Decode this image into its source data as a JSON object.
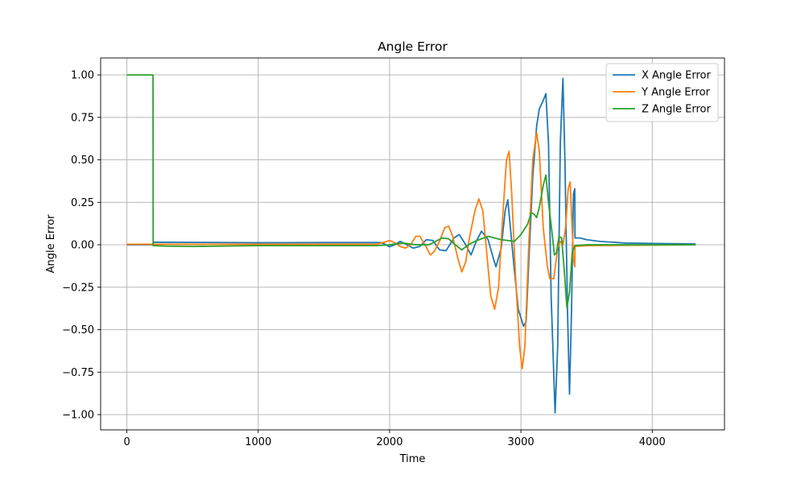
{
  "chart_data": {
    "type": "line",
    "title": "Angle Error",
    "xlabel": "Time",
    "ylabel": "Angle Error",
    "xlim": [
      -200,
      4550
    ],
    "ylim": [
      -1.09,
      1.1
    ],
    "xticks": [
      0,
      1000,
      2000,
      3000,
      4000
    ],
    "xtick_labels": [
      "0",
      "1000",
      "2000",
      "3000",
      "4000"
    ],
    "yticks": [
      -1.0,
      -0.75,
      -0.5,
      -0.25,
      0.0,
      0.25,
      0.5,
      0.75,
      1.0
    ],
    "ytick_labels": [
      "−1.00",
      "−0.75",
      "−0.50",
      "−0.25",
      "0.00",
      "0.25",
      "0.50",
      "0.75",
      "1.00"
    ],
    "grid": true,
    "legend_position": "top-right",
    "series": [
      {
        "name": "X Angle Error",
        "color": "#1f77b4",
        "points": [
          [
            0,
            0
          ],
          [
            199,
            0
          ],
          [
            200,
            0.015
          ],
          [
            600,
            0.014
          ],
          [
            1000,
            0.012
          ],
          [
            1500,
            0.013
          ],
          [
            1930,
            0.013
          ],
          [
            1960,
            0.005
          ],
          [
            2000,
            -0.012
          ],
          [
            2040,
            0.0
          ],
          [
            2080,
            0.02
          ],
          [
            2120,
            0.005
          ],
          [
            2180,
            -0.02
          ],
          [
            2230,
            -0.01
          ],
          [
            2280,
            0.03
          ],
          [
            2330,
            0.025
          ],
          [
            2380,
            -0.03
          ],
          [
            2430,
            -0.035
          ],
          [
            2490,
            0.04
          ],
          [
            2530,
            0.06
          ],
          [
            2580,
            0.0
          ],
          [
            2620,
            -0.06
          ],
          [
            2660,
            0.02
          ],
          [
            2700,
            0.08
          ],
          [
            2750,
            0.03
          ],
          [
            2790,
            -0.08
          ],
          [
            2810,
            -0.13
          ],
          [
            2850,
            -0.02
          ],
          [
            2880,
            0.2
          ],
          [
            2900,
            0.265
          ],
          [
            2920,
            0.1
          ],
          [
            2950,
            -0.15
          ],
          [
            2980,
            -0.38
          ],
          [
            3020,
            -0.48
          ],
          [
            3040,
            -0.45
          ],
          [
            3060,
            -0.1
          ],
          [
            3090,
            0.4
          ],
          [
            3120,
            0.7
          ],
          [
            3140,
            0.8
          ],
          [
            3170,
            0.85
          ],
          [
            3190,
            0.89
          ],
          [
            3210,
            0.6
          ],
          [
            3230,
            -0.3
          ],
          [
            3260,
            -0.99
          ],
          [
            3280,
            -0.6
          ],
          [
            3300,
            0.6
          ],
          [
            3320,
            0.98
          ],
          [
            3335,
            0.5
          ],
          [
            3355,
            -0.4
          ],
          [
            3370,
            -0.88
          ],
          [
            3385,
            -0.4
          ],
          [
            3400,
            0.3
          ],
          [
            3410,
            0.33
          ],
          [
            3412,
            0.04
          ],
          [
            3450,
            0.04
          ],
          [
            3500,
            0.03
          ],
          [
            3600,
            0.02
          ],
          [
            3800,
            0.01
          ],
          [
            4000,
            0.008
          ],
          [
            4330,
            0.005
          ]
        ]
      },
      {
        "name": "Y Angle Error",
        "color": "#ff7f0e",
        "points": [
          [
            0,
            0.003
          ],
          [
            1900,
            0.003
          ],
          [
            1960,
            0.015
          ],
          [
            2000,
            0.025
          ],
          [
            2040,
            0.012
          ],
          [
            2080,
            -0.01
          ],
          [
            2120,
            -0.02
          ],
          [
            2160,
            0.0
          ],
          [
            2200,
            0.05
          ],
          [
            2230,
            0.05
          ],
          [
            2270,
            0.0
          ],
          [
            2310,
            -0.06
          ],
          [
            2340,
            -0.04
          ],
          [
            2380,
            0.02
          ],
          [
            2420,
            0.1
          ],
          [
            2450,
            0.11
          ],
          [
            2480,
            0.05
          ],
          [
            2520,
            -0.08
          ],
          [
            2550,
            -0.16
          ],
          [
            2580,
            -0.1
          ],
          [
            2610,
            0.05
          ],
          [
            2650,
            0.2
          ],
          [
            2680,
            0.27
          ],
          [
            2710,
            0.2
          ],
          [
            2740,
            -0.05
          ],
          [
            2770,
            -0.3
          ],
          [
            2800,
            -0.38
          ],
          [
            2830,
            -0.25
          ],
          [
            2860,
            0.15
          ],
          [
            2890,
            0.5
          ],
          [
            2910,
            0.55
          ],
          [
            2930,
            0.3
          ],
          [
            2960,
            -0.2
          ],
          [
            2990,
            -0.6
          ],
          [
            3010,
            -0.73
          ],
          [
            3030,
            -0.6
          ],
          [
            3060,
            0.0
          ],
          [
            3090,
            0.5
          ],
          [
            3120,
            0.66
          ],
          [
            3140,
            0.55
          ],
          [
            3170,
            0.1
          ],
          [
            3200,
            -0.12
          ],
          [
            3220,
            -0.2
          ],
          [
            3250,
            -0.2
          ],
          [
            3280,
            -0.02
          ],
          [
            3300,
            0.02
          ],
          [
            3320,
            0.0
          ],
          [
            3340,
            0.1
          ],
          [
            3360,
            0.33
          ],
          [
            3375,
            0.37
          ],
          [
            3390,
            0.1
          ],
          [
            3400,
            -0.08
          ],
          [
            3410,
            -0.13
          ],
          [
            3412,
            -0.01
          ],
          [
            3500,
            -0.005
          ],
          [
            4330,
            0.0
          ]
        ]
      },
      {
        "name": "Z Angle Error",
        "color": "#2ca02c",
        "points": [
          [
            0,
            1.0
          ],
          [
            199,
            1.0
          ],
          [
            200,
            -0.005
          ],
          [
            300,
            -0.008
          ],
          [
            500,
            -0.01
          ],
          [
            1000,
            -0.005
          ],
          [
            1900,
            -0.005
          ],
          [
            2000,
            0.0
          ],
          [
            2100,
            0.01
          ],
          [
            2200,
            0.0
          ],
          [
            2300,
            0.0
          ],
          [
            2400,
            0.04
          ],
          [
            2450,
            0.035
          ],
          [
            2500,
            0.0
          ],
          [
            2550,
            -0.03
          ],
          [
            2600,
            0.0
          ],
          [
            2650,
            0.02
          ],
          [
            2750,
            0.05
          ],
          [
            2850,
            0.03
          ],
          [
            2950,
            0.02
          ],
          [
            3000,
            0.06
          ],
          [
            3050,
            0.12
          ],
          [
            3080,
            0.19
          ],
          [
            3100,
            0.18
          ],
          [
            3120,
            0.16
          ],
          [
            3140,
            0.22
          ],
          [
            3170,
            0.35
          ],
          [
            3190,
            0.41
          ],
          [
            3210,
            0.25
          ],
          [
            3240,
            0.05
          ],
          [
            3255,
            -0.06
          ],
          [
            3270,
            -0.05
          ],
          [
            3290,
            0.05
          ],
          [
            3310,
            0.04
          ],
          [
            3330,
            -0.15
          ],
          [
            3350,
            -0.37
          ],
          [
            3370,
            -0.28
          ],
          [
            3390,
            -0.05
          ],
          [
            3410,
            -0.005
          ],
          [
            3500,
            0.0
          ],
          [
            4330,
            0.0
          ]
        ]
      }
    ]
  }
}
